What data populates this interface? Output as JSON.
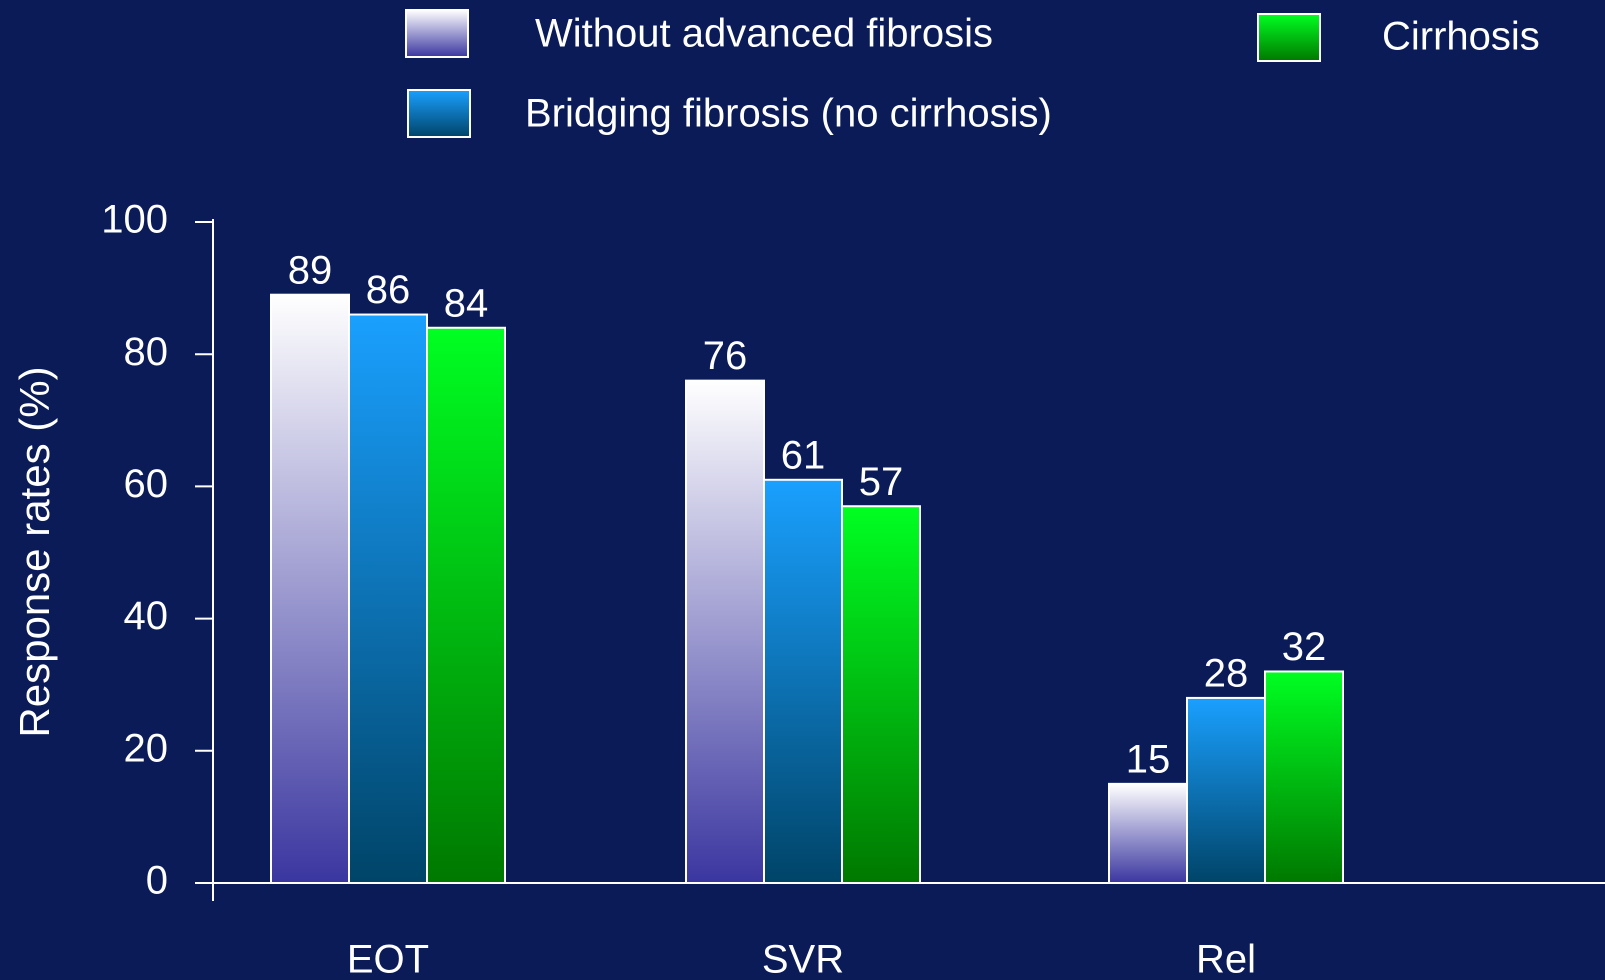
{
  "chart_data": {
    "type": "bar",
    "y_label": "Response rates (%)",
    "categories": [
      "EOT",
      "SVR",
      "Rel"
    ],
    "series": [
      {
        "name": "Without advanced fibrosis",
        "color": "#ffffff",
        "values": [
          89,
          76,
          15
        ]
      },
      {
        "name": "Bridging fibrosis (no cirrhosis)",
        "color": "#1aa0ff",
        "values": [
          86,
          61,
          28
        ]
      },
      {
        "name": "Cirrhosis",
        "color": "#00ff22",
        "values": [
          84,
          57,
          32
        ]
      }
    ],
    "ylim": [
      0,
      100
    ],
    "yticks": [
      0,
      20,
      40,
      60,
      80,
      100
    ],
    "grid": false
  }
}
